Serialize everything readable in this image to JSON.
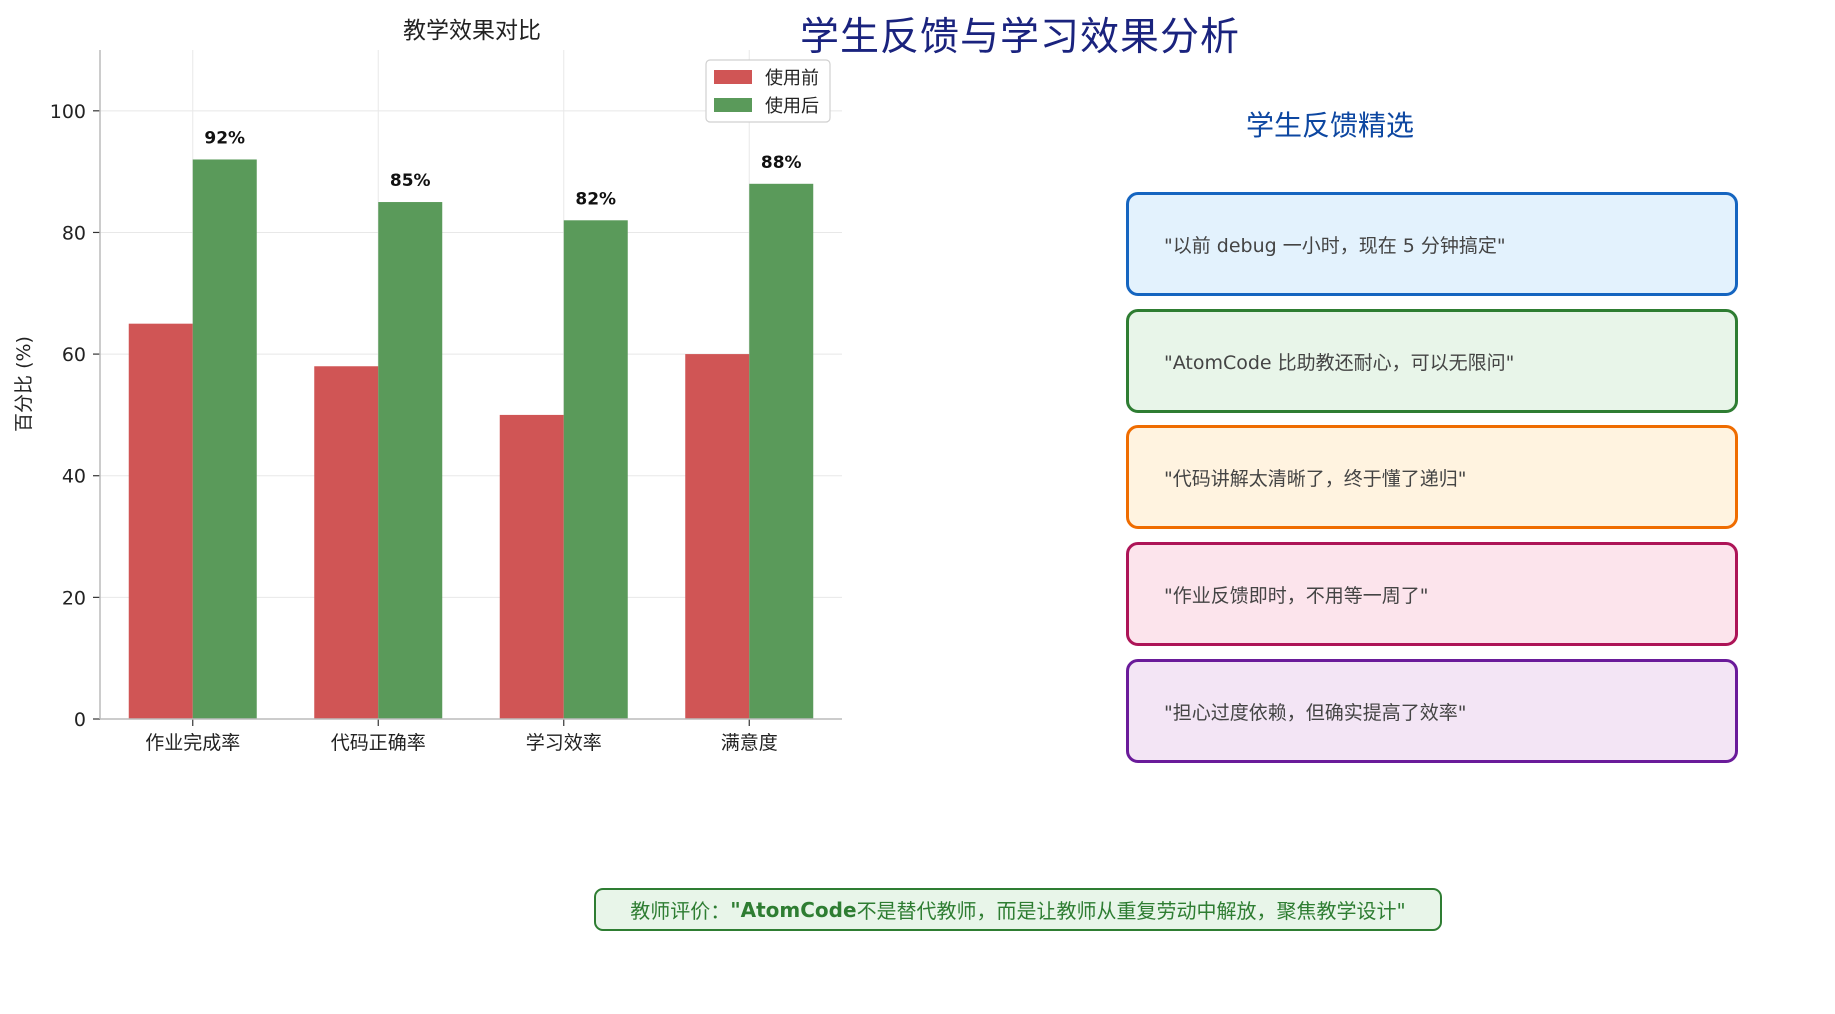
{
  "page_title": "学生反馈与学习效果分析",
  "chart_data": {
    "type": "bar",
    "title": "教学效果对比",
    "xlabel": "",
    "ylabel": "百分比 (%)",
    "categories": [
      "作业完成率",
      "代码正确率",
      "学习效率",
      "满意度"
    ],
    "series": [
      {
        "name": "使用前",
        "values": [
          65,
          58,
          50,
          60
        ],
        "color": "#d05555"
      },
      {
        "name": "使用后",
        "values": [
          92,
          85,
          82,
          88
        ],
        "color": "#5a9a5a"
      }
    ],
    "data_labels": [
      "92%",
      "85%",
      "82%",
      "88%"
    ],
    "ylim": [
      0,
      110
    ],
    "yticks": [
      0,
      20,
      40,
      60,
      80,
      100
    ],
    "grid": true,
    "legend": "top-right"
  },
  "feedback": {
    "title": "学生反馈精选",
    "items": [
      "\"以前 debug 一小时，现在 5 分钟搞定\"",
      "\"AtomCode 比助教还耐心，可以无限问\"",
      "\"代码讲解太清晰了，终于懂了递归\"",
      "\"作业反馈即时，不用等一周了\"",
      "\"担心过度依赖，但确实提高了效率\""
    ]
  },
  "teacher": {
    "prefix": "教师评价：",
    "quote": "\"AtomCode",
    "rest": " 不是替代教师，而是让教师从重复劳动中解放，聚焦教学设计\""
  }
}
